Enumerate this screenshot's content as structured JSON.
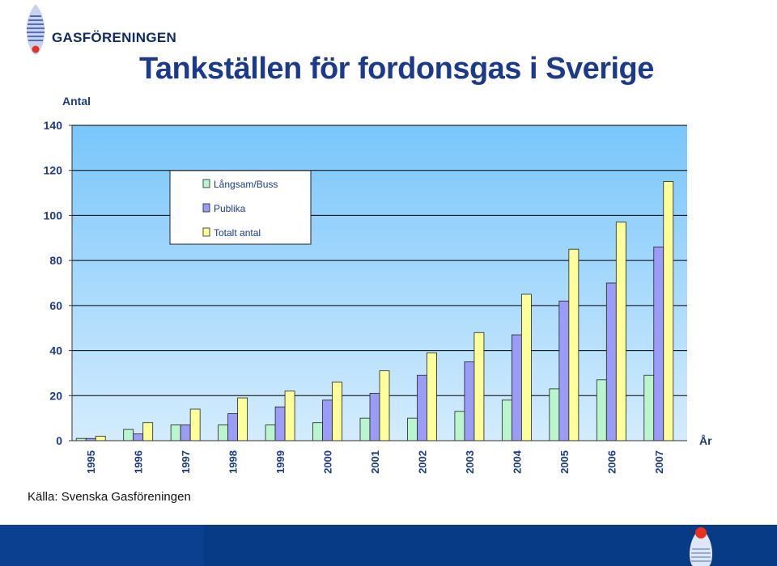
{
  "header": {
    "brand": "GASFÖRENINGEN",
    "title": "Tankställen för fordonsgas i Sverige"
  },
  "source": "Källa: Svenska Gasföreningen",
  "colors": {
    "title": "#1c3a8c",
    "plot_top": "#79c6fb",
    "plot_bottom": "#d4ecfd",
    "axis_label": "#1c3a8c"
  },
  "chart_data": {
    "type": "bar",
    "ylabel": "Antal",
    "xlabel": "År",
    "ylim": [
      0,
      140
    ],
    "yticks": [
      0,
      20,
      40,
      60,
      80,
      100,
      120,
      140
    ],
    "grid": true,
    "legend_position": "top-left",
    "categories": [
      "1995",
      "1996",
      "1997",
      "1998",
      "1999",
      "2000",
      "2001",
      "2002",
      "2003",
      "2004",
      "2005",
      "2006",
      "2007"
    ],
    "series": [
      {
        "name": "Långsam/Buss",
        "color": "#b9f5cd",
        "values": [
          1,
          5,
          7,
          7,
          7,
          8,
          10,
          10,
          13,
          18,
          23,
          27,
          29
        ]
      },
      {
        "name": "Publika",
        "color": "#9a9cf7",
        "values": [
          1,
          3,
          7,
          12,
          15,
          18,
          21,
          29,
          35,
          47,
          62,
          70,
          86
        ]
      },
      {
        "name": "Totalt antal",
        "color": "#ffff99",
        "values": [
          2,
          8,
          14,
          19,
          22,
          26,
          31,
          39,
          48,
          65,
          85,
          97,
          115
        ]
      }
    ]
  }
}
